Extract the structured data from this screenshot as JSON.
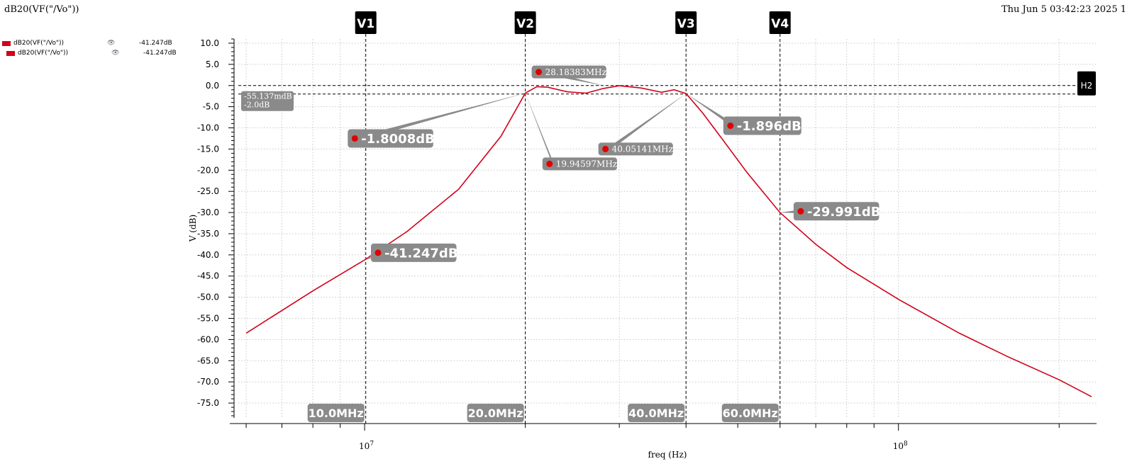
{
  "header": {
    "title": "dB20(VF(\"/Vo\"))",
    "timestamp": "Thu Jun 5 03:42:23 2025  1"
  },
  "legend": [
    {
      "name": "dB20(VF(\"/Vo\"))",
      "value": "-41.247dB",
      "color": "#d0021b",
      "icon": "eye-icon"
    },
    {
      "name": "dB20(VF(\"/Vo\"))",
      "value": "-41.247dB",
      "color": "#d0021b",
      "icon": "eye-icon"
    }
  ],
  "chart_data": {
    "type": "line",
    "xlabel": "freq (Hz)",
    "ylabel": "V (dB)",
    "xscale": "log",
    "xlim": [
      5800000.0,
      235000000.0
    ],
    "ylim": [
      -78.5,
      11
    ],
    "grid": true,
    "yticks": [
      10,
      5,
      0,
      -5,
      -10,
      -15,
      -20,
      -25,
      -30,
      -35,
      -40,
      -45,
      -50,
      -55,
      -60,
      -65,
      -70,
      -75
    ],
    "ytick_labels": [
      "10.0",
      "5.0",
      "0.0",
      "-5.0",
      "-10.0",
      "-15.0",
      "-20.0",
      "-25.0",
      "-30.0",
      "-35.0",
      "-40.0",
      "-45.0",
      "-50.0",
      "-55.0",
      "-60.0",
      "-65.0",
      "-70.0",
      "-75.0"
    ],
    "xtick_labels": [
      {
        "x": 10000000.0,
        "base": "10",
        "exp": "7"
      },
      {
        "x": 100000000.0,
        "base": "10",
        "exp": "8"
      }
    ],
    "series": [
      {
        "color": "#d0021b",
        "x": [
          6000000.0,
          8000000.0,
          10000000.0,
          12000000.0,
          15000000.0,
          18000000.0,
          20000000.0,
          21000000.0,
          22000000.0,
          24000000.0,
          26000000.0,
          28000000.0,
          30000000.0,
          33000000.0,
          36000000.0,
          38000000.0,
          40000000.0,
          43000000.0,
          47000000.0,
          52000000.0,
          60000000.0,
          70000000.0,
          80000000.0,
          100000000.0,
          130000000.0,
          160000000.0,
          200000000.0,
          230000000.0
        ],
        "y": [
          -58.5,
          -48.5,
          -41.2,
          -34.5,
          -24.5,
          -12,
          -1.8,
          -0.3,
          -0.4,
          -1.5,
          -1.8,
          -0.7,
          -0.05,
          -0.6,
          -1.6,
          -1.0,
          -1.9,
          -6.5,
          -13,
          -20.5,
          -30,
          -37.5,
          -43,
          -50.5,
          -58.5,
          -64,
          -69.5,
          -73.5
        ]
      }
    ],
    "vertical_markers": [
      {
        "label": "V1",
        "x": 10050000.0,
        "x_label": "10.0MHz"
      },
      {
        "label": "V2",
        "x": 20000000.0,
        "x_label": "20.0MHz"
      },
      {
        "label": "V3",
        "x": 40000000.0,
        "x_label": "40.0MHz"
      },
      {
        "label": "V4",
        "x": 60000000.0,
        "x_label": "60.0MHz"
      }
    ],
    "horizontal_markers": [
      {
        "label": "H2",
        "y": 0.0
      },
      {
        "label": "",
        "y": -2.0
      }
    ],
    "h_marker_delta": {
      "lines": [
        "-55.137mdB",
        "-2.0dB"
      ]
    },
    "annotations": [
      {
        "text": "-1.8008dB",
        "x": 20000000.0,
        "y": -1.8,
        "label_at": [
          9500000.0,
          -12.5
        ],
        "size": "big"
      },
      {
        "text": "-1.896dB",
        "x": 40000000.0,
        "y": -1.9,
        "label_at": [
          48000000.0,
          -9.5
        ],
        "size": "big"
      },
      {
        "text": "-41.247dB",
        "x": 10050000.0,
        "y": -41.2,
        "label_at": [
          10500000.0,
          -39.5
        ],
        "size": "big"
      },
      {
        "text": "-29.991dB",
        "x": 60000000.0,
        "y": -30,
        "label_at": [
          65000000.0,
          -29.7
        ],
        "size": "big"
      },
      {
        "text": "28.18383MHz",
        "x": 28000000.0,
        "y": 0.0,
        "label_at": [
          21000000.0,
          3.2
        ],
        "size": "small"
      },
      {
        "text": "19.94597MHz",
        "x": 20000000.0,
        "y": -1.8,
        "label_at": [
          22000000.0,
          -18.5
        ],
        "size": "small"
      },
      {
        "text": "40.05141MHz",
        "x": 40000000.0,
        "y": -1.9,
        "label_at": [
          28000000.0,
          -15.0
        ],
        "size": "small"
      }
    ]
  }
}
